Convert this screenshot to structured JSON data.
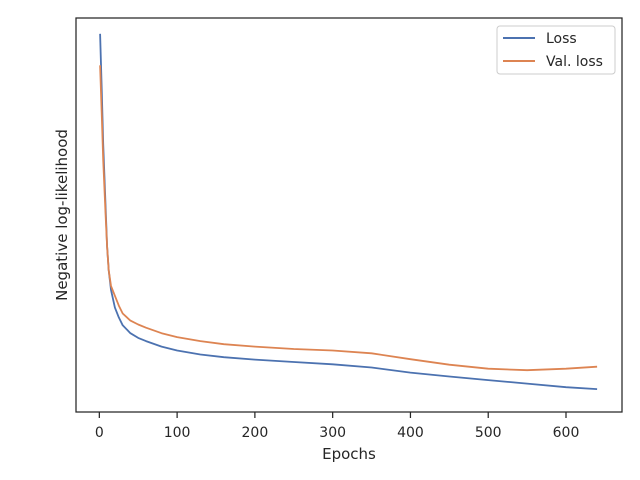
{
  "chart_data": {
    "type": "line",
    "title": "",
    "xlabel": "Epochs",
    "ylabel": "Negative log-likelihood",
    "xlim": [
      -30,
      672
    ],
    "ylim": [
      0,
      1
    ],
    "x_ticks": [
      0,
      100,
      200,
      300,
      400,
      500,
      600
    ],
    "y_ticks_shown": false,
    "grid": false,
    "legend_position": "top-right",
    "colors": {
      "Loss": "#4c72b0",
      "Val. loss": "#dd8452",
      "axes": "#262626"
    },
    "series": [
      {
        "name": "Loss",
        "x": [
          1,
          3,
          5,
          8,
          10,
          12,
          15,
          20,
          25,
          30,
          40,
          50,
          60,
          80,
          100,
          130,
          160,
          200,
          250,
          300,
          350,
          400,
          450,
          500,
          550,
          600,
          640
        ],
        "y": [
          0.96,
          0.82,
          0.68,
          0.52,
          0.42,
          0.36,
          0.31,
          0.265,
          0.24,
          0.22,
          0.2,
          0.188,
          0.18,
          0.166,
          0.156,
          0.146,
          0.139,
          0.133,
          0.127,
          0.121,
          0.113,
          0.1,
          0.09,
          0.081,
          0.072,
          0.063,
          0.058
        ]
      },
      {
        "name": "Val. loss",
        "x": [
          1,
          3,
          5,
          8,
          10,
          12,
          15,
          20,
          25,
          30,
          40,
          50,
          60,
          80,
          100,
          130,
          160,
          200,
          250,
          300,
          350,
          400,
          450,
          500,
          550,
          600,
          640
        ],
        "y": [
          0.88,
          0.76,
          0.64,
          0.5,
          0.42,
          0.36,
          0.32,
          0.295,
          0.27,
          0.25,
          0.232,
          0.222,
          0.214,
          0.2,
          0.19,
          0.18,
          0.172,
          0.166,
          0.16,
          0.156,
          0.149,
          0.134,
          0.12,
          0.11,
          0.106,
          0.11,
          0.115
        ]
      }
    ]
  }
}
